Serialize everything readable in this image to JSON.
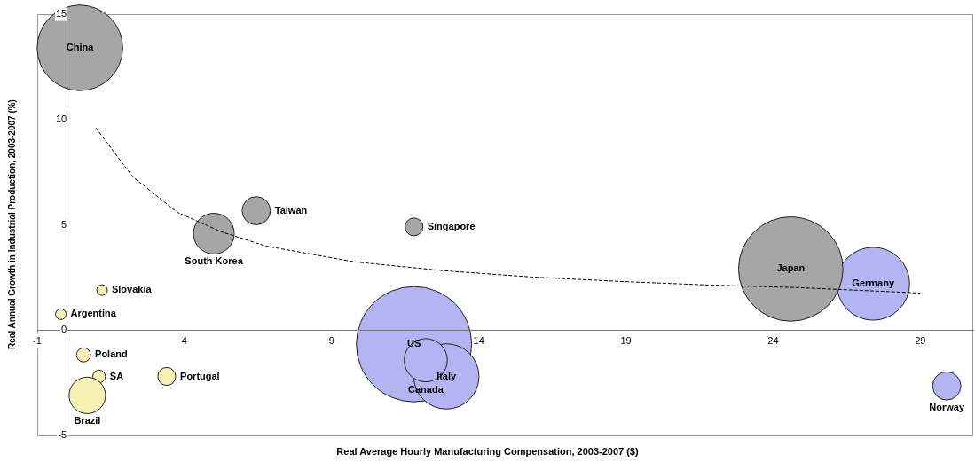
{
  "chart_data": {
    "type": "bubble",
    "xlabel": "Real Average Hourly Manufacturing Compensation, 2003-2007 ($)",
    "ylabel": "Real Annual Growth in Industrial Production, 2003-2007 (%)",
    "xlim": [
      -1,
      30.8
    ],
    "xticks": [
      -1,
      4,
      9,
      14,
      19,
      24,
      29
    ],
    "ylim": [
      -5,
      15
    ],
    "yticks": [
      -5,
      0,
      5,
      10,
      15
    ],
    "grid": false,
    "legend": false,
    "series": [
      {
        "color": "#a6a6a6",
        "x": [
          0.45,
          6.44,
          5.0,
          11.8,
          24.6
        ],
        "values": [
          13.4,
          5.67,
          4.58,
          4.9,
          2.9
        ],
        "sizes": [
          0.55,
          0.06,
          0.125,
          0.024,
          0.82
        ]
      },
      {
        "color": "#b4b4f2",
        "x": [
          27.4,
          11.8,
          12.9,
          12.2,
          29.9
        ],
        "values": [
          2.2,
          -0.67,
          -2.2,
          -1.43,
          -2.65
        ],
        "sizes": [
          0.4,
          1,
          0.32,
          0.14,
          0.06
        ]
      },
      {
        "color": "#f6f1b4",
        "x": [
          1.2,
          -0.2,
          0.57,
          1.1,
          0.7,
          3.4
        ],
        "values": [
          1.9,
          0.75,
          -1.18,
          -2.2,
          -3.1,
          -2.2
        ],
        "sizes": [
          0.0085,
          0.0085,
          0.015,
          0.012,
          0.1,
          0.024
        ]
      },
      {
        "type": "line",
        "line_style": "dashed",
        "marker": "none",
        "color": "#000000",
        "x": [
          0.99,
          2.25,
          3.76,
          5.27,
          6.77,
          9.78,
          12.8,
          15.8,
          18.8,
          21.8,
          24.8,
          29.0
        ],
        "values": [
          9.6,
          7.27,
          5.59,
          4.66,
          3.99,
          3.24,
          2.82,
          2.52,
          2.31,
          2.14,
          2.02,
          1.76
        ]
      }
    ],
    "annotations": [
      {
        "text": "China",
        "x": 0.45,
        "y": 13.4
      },
      {
        "text": "Taiwan",
        "x": 6.44,
        "y": 5.67
      },
      {
        "text": "South Korea",
        "x": 5.0,
        "y": 4.58
      },
      {
        "text": "Singapore",
        "x": 11.8,
        "y": 4.9
      },
      {
        "text": "Japan",
        "x": 24.6,
        "y": 2.9
      },
      {
        "text": "Germany",
        "x": 27.4,
        "y": 2.2
      },
      {
        "text": "Slovakia",
        "x": 1.2,
        "y": 1.9
      },
      {
        "text": "Argentina",
        "x": -0.2,
        "y": 0.75
      },
      {
        "text": "Poland",
        "x": 0.57,
        "y": -1.18
      },
      {
        "text": "SA",
        "x": 1.1,
        "y": -2.2
      },
      {
        "text": "Brazil",
        "x": 0.7,
        "y": -3.1
      },
      {
        "text": "Portugal",
        "x": 3.4,
        "y": -2.2
      },
      {
        "text": "US",
        "x": 11.8,
        "y": -0.67
      },
      {
        "text": "Canada",
        "x": 12.2,
        "y": -1.43
      },
      {
        "text": "Italy",
        "x": 12.9,
        "y": -2.2
      },
      {
        "text": "Norway",
        "x": 29.9,
        "y": -2.65
      }
    ]
  }
}
